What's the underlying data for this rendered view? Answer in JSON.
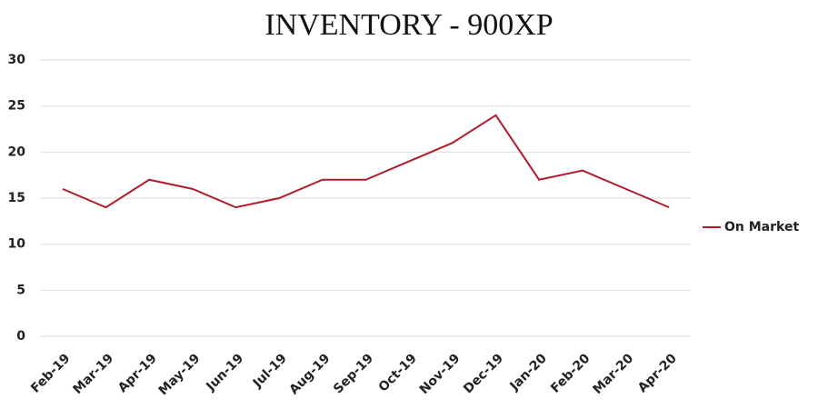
{
  "chart_data": {
    "type": "line",
    "title": "INVENTORY - 900XP",
    "categories": [
      "Feb-19",
      "Mar-19",
      "Apr-19",
      "May-19",
      "Jun-19",
      "Jul-19",
      "Aug-19",
      "Sep-19",
      "Oct-19",
      "Nov-19",
      "Dec-19",
      "Jan-20",
      "Feb-20",
      "Mar-20",
      "Apr-20"
    ],
    "series": [
      {
        "name": "On Market",
        "color": "#b01c2e",
        "values": [
          16,
          14,
          17,
          16,
          14,
          15,
          17,
          17,
          19,
          21,
          24,
          17,
          18,
          16,
          14
        ]
      }
    ],
    "ylim": [
      0,
      30
    ],
    "yticks": [
      0,
      5,
      10,
      15,
      20,
      25,
      30
    ],
    "grid": true,
    "legend": "right"
  }
}
